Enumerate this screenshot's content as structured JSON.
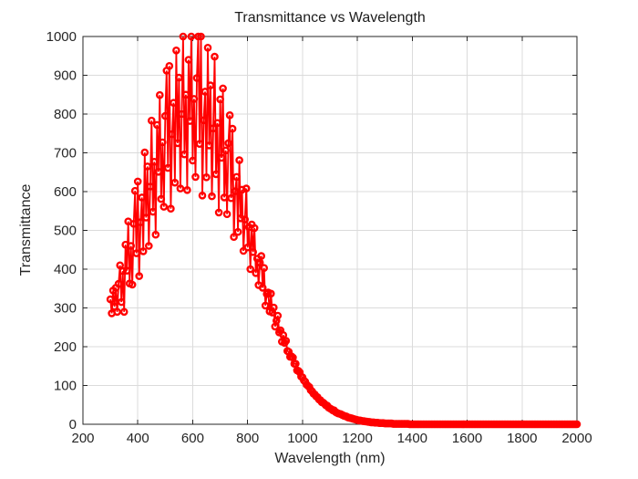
{
  "chart_data": {
    "type": "line",
    "title": "Transmittance vs Wavelength",
    "xlabel": "Wavelength (nm)",
    "ylabel": "Transmittance",
    "xlim": [
      200,
      2000
    ],
    "ylim": [
      0,
      1000
    ],
    "xticks": [
      200,
      400,
      600,
      800,
      1000,
      1200,
      1400,
      1600,
      1800,
      2000
    ],
    "yticks": [
      0,
      100,
      200,
      300,
      400,
      500,
      600,
      700,
      800,
      900,
      1000
    ],
    "grid": true,
    "legend": "none",
    "marker": "o",
    "marker_fill": "hollow",
    "line_color": "#ff0000",
    "axis_color": "#262626",
    "grid_color": "#dbdbdb",
    "background": "#ffffff",
    "series": [
      {
        "name": "transmittance",
        "x_start": 300,
        "x_step": 5,
        "y": [
          322,
          286,
          345,
          303,
          352,
          290,
          362,
          410,
          315,
          395,
          290,
          463,
          396,
          523,
          363,
          460,
          360,
          517,
          602,
          441,
          626,
          382,
          521,
          585,
          446,
          701,
          533,
          665,
          460,
          613,
          783,
          548,
          677,
          489,
          772,
          651,
          849,
          581,
          727,
          561,
          795,
          912,
          661,
          924,
          556,
          748,
          829,
          623,
          964,
          725,
          894,
          608,
          800,
          1000,
          696,
          850,
          604,
          940,
          782,
          1000,
          680,
          839,
          638,
          893,
          1000,
          723,
          1000,
          590,
          784,
          858,
          637,
          971,
          719,
          874,
          588,
          763,
          948,
          645,
          777,
          546,
          838,
          687,
          866,
          585,
          706,
          542,
          725,
          797,
          583,
          762,
          483,
          601,
          638,
          496,
          681,
          531,
          605,
          447,
          528,
          608,
          456,
          508,
          400,
          515,
          444,
          506,
          390,
          427,
          359,
          417,
          434,
          352,
          403,
          306,
          336,
          340,
          291,
          337,
          288,
          301,
          252,
          267,
          280,
          237,
          242,
          213,
          230,
          210,
          215,
          189,
          187,
          174,
          175,
          172,
          156,
          156,
          139,
          138,
          134,
          123,
          121,
          113,
          110,
          102,
          99,
          96,
          88,
          85,
          79,
          77,
          72,
          70,
          64,
          62,
          57,
          56,
          53,
          49,
          48,
          43,
          41,
          39,
          36,
          36,
          32,
          30,
          28,
          27,
          26,
          24,
          22,
          21,
          20,
          18,
          17,
          16,
          15,
          14,
          13,
          12,
          11,
          10,
          10,
          9,
          8,
          8,
          7,
          7,
          6,
          6,
          5,
          5,
          5,
          4,
          4,
          4,
          3,
          3,
          3,
          3,
          2,
          2,
          2,
          2,
          2,
          2,
          1,
          1,
          1,
          1,
          1,
          1,
          1,
          1,
          1,
          1,
          1,
          1,
          0,
          0,
          0,
          0,
          0,
          0,
          0,
          0,
          0,
          0,
          0,
          0,
          0,
          0,
          0,
          0,
          0,
          0,
          0,
          0,
          0,
          0,
          0,
          0,
          0,
          0,
          0,
          0,
          0,
          0,
          0,
          0,
          0,
          0,
          0,
          0,
          0,
          0,
          0,
          0,
          0,
          0,
          0,
          0,
          0,
          0,
          0,
          0,
          0,
          0,
          0,
          0,
          0,
          0,
          0,
          0,
          0,
          0,
          0,
          0,
          0,
          0,
          0,
          0,
          0,
          0,
          0,
          0,
          0,
          0,
          0,
          0,
          0,
          0,
          0,
          0,
          0,
          0,
          0,
          0,
          0,
          0,
          0,
          0,
          0,
          0,
          0,
          0,
          0,
          0,
          0,
          0,
          0,
          0,
          0,
          0,
          0,
          0,
          0,
          0,
          0,
          0,
          0,
          0,
          0,
          0,
          0,
          0,
          0,
          0,
          0,
          0,
          0,
          0,
          0,
          0,
          0,
          0,
          0,
          0,
          0,
          0,
          0
        ]
      }
    ]
  }
}
